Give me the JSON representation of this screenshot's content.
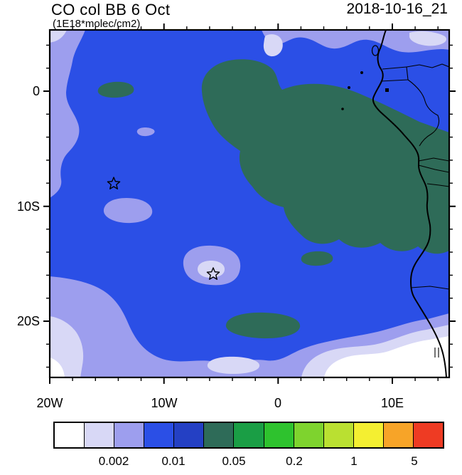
{
  "header": {
    "title": "CO col BB 6 Oct",
    "subtitle": "(1E18*molec/cm2)",
    "datestamp": "2018-10-16_21"
  },
  "palette": {
    "white": "#ffffff",
    "lavender": "#d8d8f6",
    "periwinkle": "#9d9eee",
    "blue": "#2b4fe6",
    "teal": "#2e6b58",
    "ink": "#000000"
  },
  "chart_data": {
    "type": "heatmap",
    "title": "CO col BB 6 Oct",
    "units_label": "(1E18*molec/cm2)",
    "timestamp": "2018-10-16_21",
    "projection": "lat-lon map, west coast of Africa (Gabon to Namibia) at right edge",
    "x_axis": {
      "ticks": [
        "20W",
        "10W",
        "0",
        "10E"
      ],
      "range_deg_lon": [
        -20,
        15
      ]
    },
    "y_axis": {
      "ticks": [
        "0",
        "10S",
        "20S"
      ],
      "range_deg_lat": [
        5.3,
        -25
      ]
    },
    "grid": false,
    "legend_position": "bottom-colorbar",
    "colorbar": {
      "labels": [
        "0.002",
        "0.01",
        "0.05",
        "0.2",
        "1",
        "5"
      ],
      "levels": [
        0.001,
        0.002,
        0.005,
        0.01,
        0.02,
        0.05,
        0.1,
        0.2,
        0.5,
        1,
        2,
        5
      ],
      "colors": [
        "#ffffff",
        "#d8d8f6",
        "#9d9eee",
        "#2b4fe6",
        "#2440c4",
        "#2e6b58",
        "#1a9e45",
        "#2ec22e",
        "#7ed32e",
        "#bae031",
        "#f4ef31",
        "#f7a428",
        "#ee3b23"
      ]
    },
    "regions": [
      {
        "value_range": "0.05-0.1 (dark sea-green)",
        "where": "large CO plume from ~2W,3N across the Gulf of Guinea to the Congo/Angola coast, extending to ~12S; small patches near 14W 2S, 6W 14.5S, and 4W-1W 20S"
      },
      {
        "value_range": "0.02-0.05 (blue)",
        "where": "background level over most of the ocean domain and southern land areas"
      },
      {
        "value_range": "0.005-0.02 (periwinkle/lavender)",
        "where": "western edge near 20W, top-right band, patches near 13W 10S and 6W 15.5S, broad band south of ~17S"
      },
      {
        "value_range": "< 0.005 (white)",
        "where": "south-eastern corner along ~22-25S toward the Namibian coast and bottom-left corner near 20W 24S"
      }
    ],
    "markers": [
      {
        "symbol": "open-star",
        "lon": "~14.5W",
        "lat": "~8S"
      },
      {
        "symbol": "open-star",
        "lon": "~5.5W",
        "lat": "~16S"
      }
    ]
  }
}
